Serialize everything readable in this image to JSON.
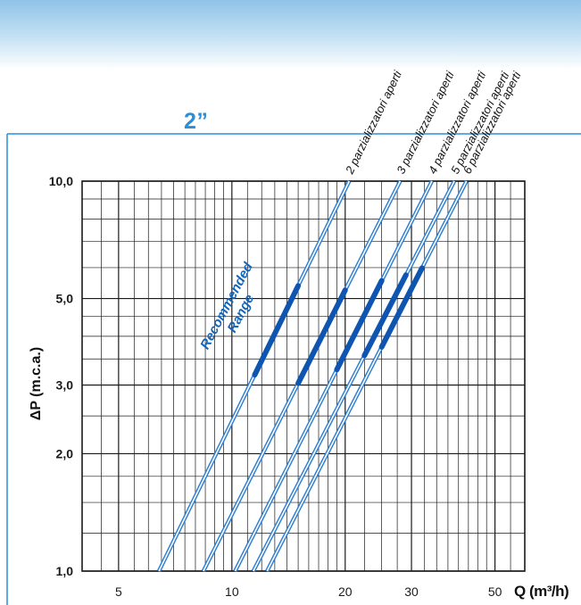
{
  "header": {
    "size_label": "2”"
  },
  "colors": {
    "accent": "#2a8fd8",
    "series_line": "#2f7fd1",
    "recommended": "#0d55b0",
    "grid": "#1a1a1a"
  },
  "chart_data": {
    "type": "line",
    "title": "2”",
    "xlabel": "Q (m³/h)",
    "ylabel": "ΔP (m.c.a.)",
    "x_scale": "log",
    "y_scale": "log",
    "xlim": [
      4,
      60
    ],
    "ylim": [
      1.0,
      10.0
    ],
    "grid": true,
    "x_ticks": [
      {
        "value": 5,
        "label": "5"
      },
      {
        "value": 10,
        "label": "10"
      },
      {
        "value": 20,
        "label": "20"
      },
      {
        "value": 30,
        "label": "30"
      },
      {
        "value": 50,
        "label": "50"
      }
    ],
    "y_ticks": [
      {
        "value": 1.0,
        "label": "1,0"
      },
      {
        "value": 2.0,
        "label": "2,0"
      },
      {
        "value": 3.0,
        "label": "3,0"
      },
      {
        "value": 5.0,
        "label": "5,0"
      },
      {
        "value": 10.0,
        "label": "10,0"
      }
    ],
    "series": [
      {
        "name": "2 parzializzatori aperti",
        "x": [
          6.4,
          20.5
        ],
        "y": [
          1.0,
          10.0
        ],
        "recommended_x": [
          11.5,
          15.0
        ]
      },
      {
        "name": "3 parzializzatori aperti",
        "x": [
          8.4,
          28.0
        ],
        "y": [
          1.0,
          10.0
        ],
        "recommended_x": [
          15.0,
          20.0
        ]
      },
      {
        "name": "4 parzializzatori aperti",
        "x": [
          10.2,
          34.0
        ],
        "y": [
          1.0,
          10.0
        ],
        "recommended_x": [
          19.0,
          25.0
        ]
      },
      {
        "name": "5 parzializzatori aperti",
        "x": [
          11.4,
          39.0
        ],
        "y": [
          1.0,
          10.0
        ],
        "recommended_x": [
          22.5,
          29.0
        ]
      },
      {
        "name": "6 parzializzatori aperti",
        "x": [
          12.4,
          42.0
        ],
        "y": [
          1.0,
          10.0
        ],
        "recommended_x": [
          25.0,
          32.0
        ]
      }
    ],
    "annotation": {
      "line1": "Recommended",
      "line2": "Range"
    }
  }
}
